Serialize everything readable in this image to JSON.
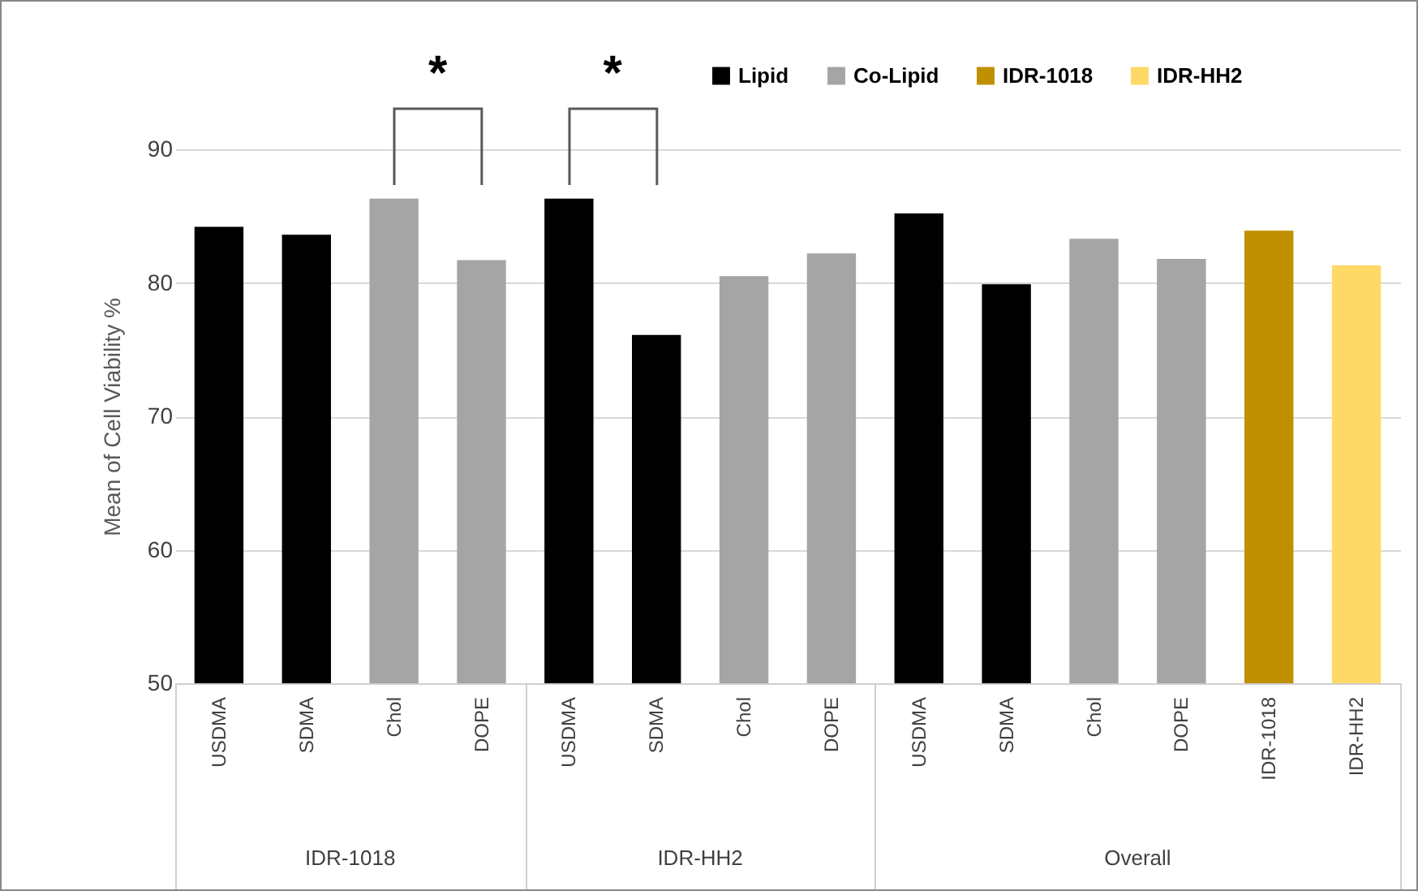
{
  "chart_data": {
    "type": "bar",
    "ylabel": "Mean of Cell Viability %",
    "categories": [
      "USDMA",
      "SDMA",
      "Chol",
      "DOPE",
      "USDMA",
      "SDMA",
      "Chol",
      "DOPE",
      "USDMA",
      "SDMA",
      "Chol",
      "DOPE",
      "IDR-1018",
      "IDR-HH2"
    ],
    "series": [
      {
        "name": "Lipid",
        "color": "#000000",
        "values": [
          84.2,
          83.6,
          null,
          null,
          86.3,
          76.1,
          null,
          null,
          85.2,
          79.9,
          null,
          null,
          null,
          null
        ]
      },
      {
        "name": "Co-Lipid",
        "color": "#a5a5a5",
        "values": [
          null,
          null,
          86.3,
          81.7,
          null,
          null,
          80.5,
          82.2,
          null,
          null,
          83.3,
          81.8,
          null,
          null
        ]
      },
      {
        "name": "IDR-1018",
        "color": "#bf9000",
        "values": [
          null,
          null,
          null,
          null,
          null,
          null,
          null,
          null,
          null,
          null,
          null,
          null,
          83.9,
          null
        ]
      },
      {
        "name": "IDR-HH2",
        "color": "#ffd966",
        "values": [
          null,
          null,
          null,
          null,
          null,
          null,
          null,
          null,
          null,
          null,
          null,
          null,
          null,
          81.3
        ]
      }
    ],
    "ylim": [
      50,
      90
    ],
    "yticks": [
      50,
      60,
      70,
      80,
      90
    ],
    "grid": "y",
    "legend": "top right",
    "annotations": [
      "*",
      "*",
      "IDR-1018",
      "IDR-HH2",
      "Overall"
    ]
  }
}
